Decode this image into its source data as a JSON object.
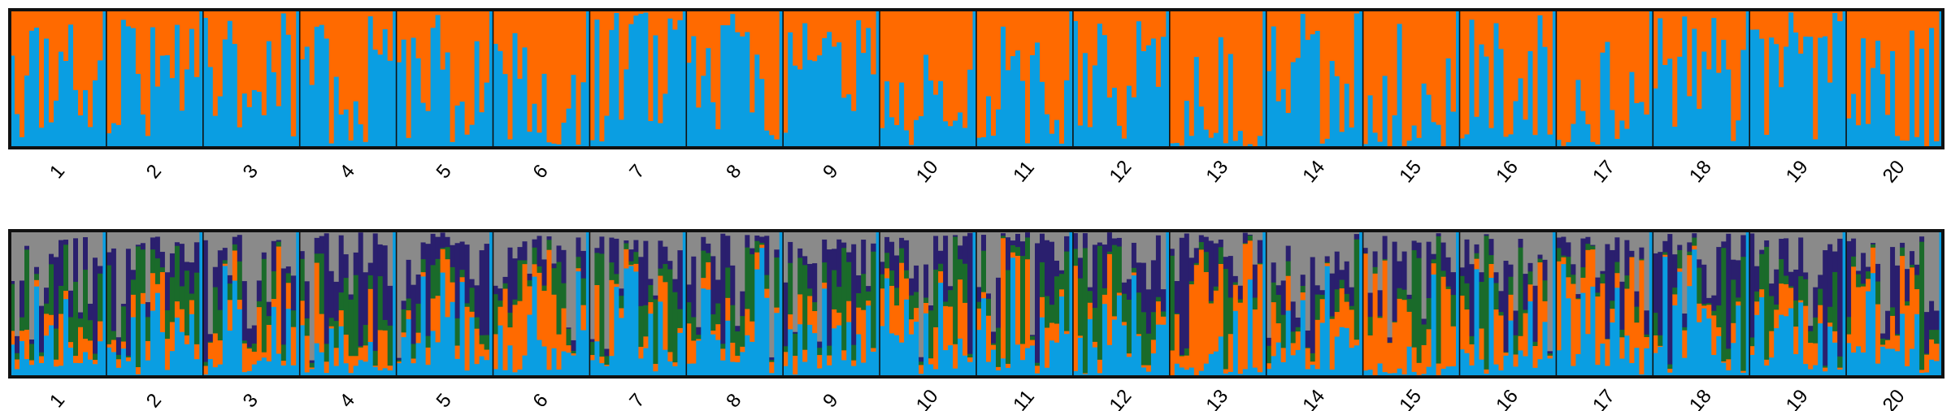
{
  "chart_data": [
    {
      "type": "bar",
      "stacked": true,
      "k": 2,
      "categories": [
        "1",
        "2",
        "3",
        "4",
        "5",
        "6",
        "7",
        "8",
        "9",
        "10",
        "11",
        "12",
        "13",
        "14",
        "15",
        "16",
        "17",
        "18",
        "19",
        "20"
      ],
      "colors": {
        "cluster_1": "#0a9ee2",
        "cluster_2": "#ff6a00",
        "mixed": "#8a8a8a"
      },
      "population_mean_fraction": {
        "cluster_1": [
          0.4,
          0.55,
          0.6,
          0.45,
          0.5,
          0.38,
          0.6,
          0.62,
          0.5,
          0.3,
          0.45,
          0.62,
          0.08,
          0.55,
          0.06,
          0.5,
          0.2,
          0.58,
          0.82,
          0.25
        ],
        "cluster_2": [
          0.6,
          0.45,
          0.4,
          0.55,
          0.5,
          0.62,
          0.4,
          0.38,
          0.5,
          0.7,
          0.55,
          0.38,
          0.92,
          0.45,
          0.94,
          0.5,
          0.8,
          0.42,
          0.18,
          0.75
        ]
      },
      "ylim": [
        0,
        1
      ],
      "grid": false,
      "legend": "none"
    },
    {
      "type": "bar",
      "stacked": true,
      "k": 5,
      "categories": [
        "1",
        "2",
        "3",
        "4",
        "5",
        "6",
        "7",
        "8",
        "9",
        "10",
        "11",
        "12",
        "13",
        "14",
        "15",
        "16",
        "17",
        "18",
        "19",
        "20"
      ],
      "colors": {
        "cluster_1": "#0a9ee2",
        "cluster_2": "#ff6a00",
        "cluster_3": "#1a6b2a",
        "cluster_4": "#2a1f6e",
        "cluster_5": "#8a8a8a"
      },
      "population_mean_fraction": {
        "cluster_1": [
          0.3,
          0.3,
          0.25,
          0.2,
          0.25,
          0.22,
          0.3,
          0.35,
          0.25,
          0.25,
          0.3,
          0.3,
          0.1,
          0.3,
          0.08,
          0.3,
          0.2,
          0.3,
          0.35,
          0.25
        ],
        "cluster_2": [
          0.1,
          0.15,
          0.2,
          0.15,
          0.2,
          0.25,
          0.15,
          0.1,
          0.15,
          0.2,
          0.1,
          0.1,
          0.55,
          0.2,
          0.55,
          0.2,
          0.4,
          0.15,
          0.1,
          0.25
        ],
        "cluster_3": [
          0.2,
          0.15,
          0.15,
          0.2,
          0.15,
          0.15,
          0.2,
          0.2,
          0.2,
          0.15,
          0.25,
          0.2,
          0.05,
          0.1,
          0.05,
          0.1,
          0.05,
          0.1,
          0.1,
          0.05
        ],
        "cluster_4": [
          0.15,
          0.15,
          0.2,
          0.25,
          0.2,
          0.18,
          0.15,
          0.15,
          0.2,
          0.2,
          0.15,
          0.2,
          0.1,
          0.15,
          0.12,
          0.15,
          0.15,
          0.2,
          0.15,
          0.15
        ],
        "cluster_5": [
          0.25,
          0.25,
          0.2,
          0.2,
          0.2,
          0.2,
          0.2,
          0.2,
          0.2,
          0.2,
          0.2,
          0.2,
          0.2,
          0.25,
          0.2,
          0.25,
          0.2,
          0.25,
          0.3,
          0.3
        ]
      },
      "ylim": [
        0,
        1
      ],
      "grid": false,
      "legend": "none"
    }
  ]
}
